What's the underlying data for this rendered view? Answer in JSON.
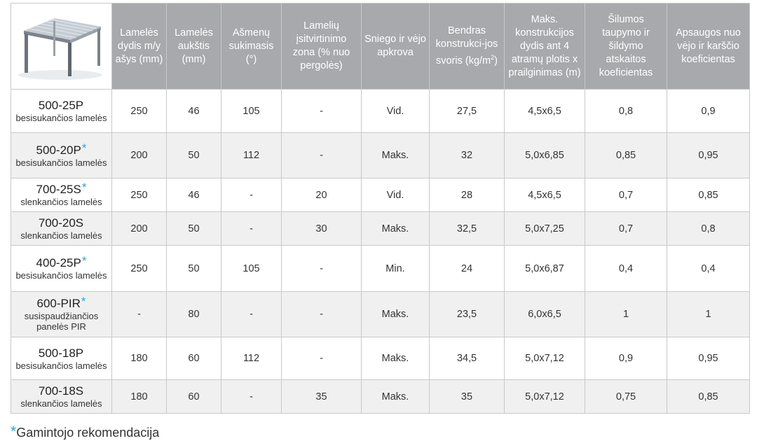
{
  "header": {
    "image_icon": "pergola-illustration",
    "columns": [
      "Lamelės dydis m/y ašys (mm)",
      "Lamelės aukštis (mm)",
      "Ašmenų sukimasis (°)",
      "Lamelių įsitvirtinimo zona (% nuo pergolės)",
      "Sniego ir vėjo apkrova",
      "Bendras konstrukci-jos svoris (kg/m²)",
      "Maks. konstrukcijos dydis ant 4 atramų plotis x prailginimas (m)",
      "Šilumos taupymo ir šildymo atskaitos koeficientas",
      "Apsaugos nuo vėjo ir karščio koeficientas"
    ]
  },
  "rows": [
    {
      "code": "500-25P",
      "star": "",
      "desc": "besisukančios lamelės",
      "cells": [
        "250",
        "46",
        "105",
        "-",
        "Vid.",
        "27,5",
        "4,5x6,5",
        "0,8",
        "0,9"
      ]
    },
    {
      "code": "500-20P",
      "star": "*",
      "desc": "besisukančios lamelės",
      "cells": [
        "200",
        "50",
        "112",
        "-",
        "Maks.",
        "32",
        "5,0x6,85",
        "0,85",
        "0,95"
      ]
    },
    {
      "code": "700-25S",
      "star": "*",
      "desc": "slenkančios lamelės",
      "cells": [
        "250",
        "46",
        "-",
        "20",
        "Vid.",
        "28",
        "4,5x6,5",
        "0,7",
        "0,85"
      ]
    },
    {
      "code": "700-20S",
      "star": "",
      "desc": "slenkančios lamelės",
      "cells": [
        "200",
        "50",
        "-",
        "30",
        "Maks.",
        "32,5",
        "5,0x7,25",
        "0,7",
        "0,8"
      ]
    },
    {
      "code": "400-25P",
      "star": "*",
      "desc": "besisukančios lamelės",
      "cells": [
        "250",
        "50",
        "105",
        "-",
        "Min.",
        "24",
        "5,0x6,87",
        "0,4",
        "0,4"
      ]
    },
    {
      "code": "600-PIR",
      "star": "*",
      "desc": "susispaudžiančios panelės PIR",
      "cells": [
        "-",
        "80",
        "-",
        "-",
        "Maks.",
        "23,5",
        "6,0x6,5",
        "1",
        "1"
      ]
    },
    {
      "code": "500-18P",
      "star": "",
      "desc": "besisukančios lamelės",
      "cells": [
        "180",
        "60",
        "112",
        "-",
        "Maks.",
        "34,5",
        "5,0x7,12",
        "0,9",
        "0,95"
      ]
    },
    {
      "code": "700-18S",
      "star": "",
      "desc": "slenkančios lamelės",
      "cells": [
        "180",
        "60",
        "-",
        "35",
        "Maks.",
        "35",
        "5,0x7,12",
        "0,75",
        "0,85"
      ]
    }
  ],
  "footnote": {
    "star": "*",
    "text": "Gamintojo rekomendacija"
  },
  "colors": {
    "header_bg": "#a7a9ac",
    "star": "#27a6d6",
    "row_alt": "#f0f0f0"
  }
}
